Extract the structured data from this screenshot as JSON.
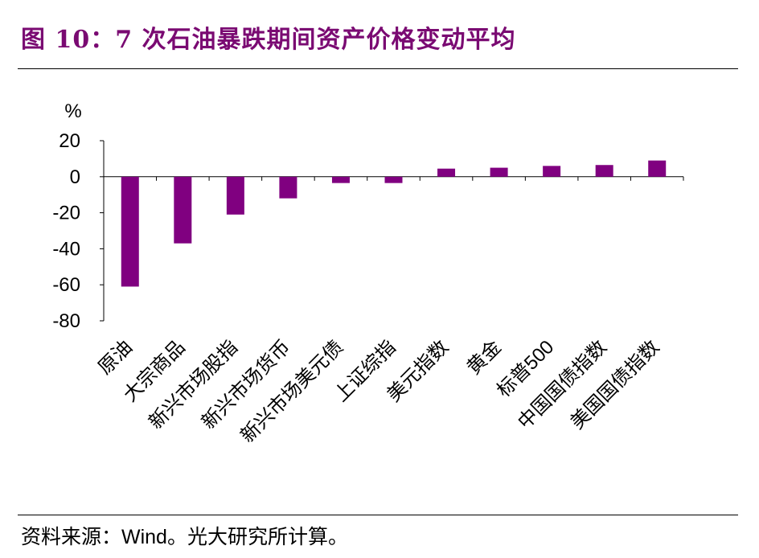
{
  "title": "图 10：7 次石油暴跌期间资产价格变动平均",
  "source": "资料来源：Wind。光大研究所计算。",
  "colors": {
    "bar": "#800080",
    "title": "#7a0a72",
    "axis": "#000000"
  },
  "chart_data": {
    "type": "bar",
    "ylabel": "%",
    "ylim": [
      -80,
      20
    ],
    "yticks": [
      20,
      0,
      -20,
      -40,
      -60,
      -80
    ],
    "grid": false,
    "legend": "none",
    "categories": [
      "原油",
      "大宗商品",
      "新兴市场股指",
      "新兴市场货币",
      "新兴市场美元债",
      "上证综指",
      "美元指数",
      "黄金",
      "标普500",
      "中国国债指数",
      "美国国债指数"
    ],
    "values": [
      -61,
      -37,
      -21,
      -12,
      -3.5,
      -3.5,
      4.5,
      5,
      6,
      6.5,
      9
    ]
  }
}
